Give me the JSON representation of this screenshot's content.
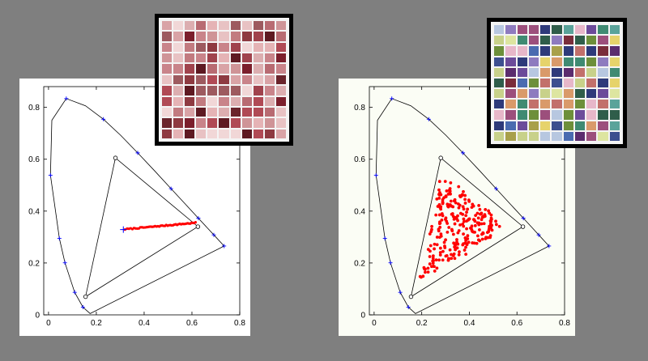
{
  "chart_data": [
    {
      "type": "scatter",
      "title": "",
      "xlabel": "",
      "ylabel": "",
      "xlim": [
        -0.02,
        0.8
      ],
      "ylim": [
        0,
        0.88
      ],
      "x_ticks": [
        "0",
        "0.2",
        "0.4",
        "0.6",
        "0.8"
      ],
      "y_ticks": [
        "0",
        "0.2",
        "0.4",
        "0.6",
        "0.8"
      ],
      "grid": false,
      "spectral_locus": [
        [
          0.1741,
          0.005
        ],
        [
          0.144,
          0.0297
        ],
        [
          0.1096,
          0.0868
        ],
        [
          0.0687,
          0.2007
        ],
        [
          0.0454,
          0.295
        ],
        [
          0.0082,
          0.5384
        ],
        [
          0.0139,
          0.7502
        ],
        [
          0.0743,
          0.8338
        ],
        [
          0.1547,
          0.8059
        ],
        [
          0.2296,
          0.7543
        ],
        [
          0.3016,
          0.6923
        ],
        [
          0.3731,
          0.6245
        ],
        [
          0.4441,
          0.5547
        ],
        [
          0.5125,
          0.4866
        ],
        [
          0.5752,
          0.4242
        ],
        [
          0.627,
          0.3725
        ],
        [
          0.6658,
          0.334
        ],
        [
          0.6915,
          0.3083
        ],
        [
          0.7347,
          0.2653
        ]
      ],
      "locus_markers": [
        [
          0.0082,
          0.5384
        ],
        [
          0.0454,
          0.295
        ],
        [
          0.0687,
          0.2007
        ],
        [
          0.1096,
          0.0868
        ],
        [
          0.144,
          0.0297
        ],
        [
          0.0743,
          0.8338
        ],
        [
          0.2296,
          0.7543
        ],
        [
          0.3731,
          0.6245
        ],
        [
          0.5125,
          0.4866
        ],
        [
          0.627,
          0.3725
        ],
        [
          0.6915,
          0.3083
        ],
        [
          0.7347,
          0.2653
        ]
      ],
      "gamut_triangle": [
        [
          0.625,
          0.34
        ],
        [
          0.28,
          0.605
        ],
        [
          0.155,
          0.07
        ]
      ],
      "white_point": [
        0.313,
        0.329
      ],
      "samples": {
        "description": "desaturated reds lying on the line from white point toward red primary",
        "start": [
          0.32,
          0.33
        ],
        "end": [
          0.615,
          0.355
        ],
        "count": 50
      },
      "swatch": {
        "rows": 11,
        "cols": 11,
        "palette": [
          "#7b1f2c",
          "#c9848a",
          "#e8c2c3",
          "#a0434d",
          "#d9a3a6",
          "#5e1a22",
          "#b86b72",
          "#f1d7d7",
          "#8e3a41",
          "#cf9497",
          "#b04a55",
          "#e5b3b5",
          "#6a242b",
          "#c27b80",
          "#9d5a5f",
          "#dcaeb0"
        ]
      }
    },
    {
      "type": "scatter",
      "title": "",
      "xlabel": "",
      "ylabel": "",
      "xlim": [
        -0.02,
        0.8
      ],
      "ylim": [
        0,
        0.88
      ],
      "x_ticks": [
        "0",
        "0.2",
        "0.4",
        "0.6",
        "0.8"
      ],
      "y_ticks": [
        "0",
        "0.2",
        "0.4",
        "0.6",
        "0.8"
      ],
      "grid": false,
      "spectral_locus": [
        [
          0.1741,
          0.005
        ],
        [
          0.144,
          0.0297
        ],
        [
          0.1096,
          0.0868
        ],
        [
          0.0687,
          0.2007
        ],
        [
          0.0454,
          0.295
        ],
        [
          0.0082,
          0.5384
        ],
        [
          0.0139,
          0.7502
        ],
        [
          0.0743,
          0.8338
        ],
        [
          0.1547,
          0.8059
        ],
        [
          0.2296,
          0.7543
        ],
        [
          0.3016,
          0.6923
        ],
        [
          0.3731,
          0.6245
        ],
        [
          0.4441,
          0.5547
        ],
        [
          0.5125,
          0.4866
        ],
        [
          0.5752,
          0.4242
        ],
        [
          0.627,
          0.3725
        ],
        [
          0.6658,
          0.334
        ],
        [
          0.6915,
          0.3083
        ],
        [
          0.7347,
          0.2653
        ]
      ],
      "locus_markers": [
        [
          0.0082,
          0.5384
        ],
        [
          0.0454,
          0.295
        ],
        [
          0.0687,
          0.2007
        ],
        [
          0.1096,
          0.0868
        ],
        [
          0.144,
          0.0297
        ],
        [
          0.0743,
          0.8338
        ],
        [
          0.2296,
          0.7543
        ],
        [
          0.3731,
          0.6245
        ],
        [
          0.5125,
          0.4866
        ],
        [
          0.627,
          0.3725
        ],
        [
          0.6915,
          0.3083
        ],
        [
          0.7347,
          0.2653
        ]
      ],
      "gamut_triangle": [
        [
          0.625,
          0.34
        ],
        [
          0.28,
          0.605
        ],
        [
          0.155,
          0.07
        ]
      ],
      "samples": {
        "description": "diverse colors scattered across the gamut, concentrated near white",
        "center": [
          0.32,
          0.33
        ],
        "count": 260
      },
      "swatch": {
        "rows": 11,
        "cols": 11,
        "palette": [
          "#2e3a7a",
          "#c8d18a",
          "#9c4f7c",
          "#3f8a72",
          "#e6d36b",
          "#6c4b9a",
          "#b7c7e0",
          "#7a2d3b",
          "#5aa39a",
          "#d99a6a",
          "#4a6bb0",
          "#a8a04a",
          "#8e7bbf",
          "#2f5d4a",
          "#e7b7c9",
          "#6d8f3a",
          "#c2706b",
          "#3d4f8f",
          "#dde5a0",
          "#5b2c6e"
        ]
      }
    }
  ],
  "colors": {
    "background": "#7f7f7f",
    "axis": "#000000",
    "locus_marker": "#0000ff",
    "sample_point": "#ff0000"
  }
}
